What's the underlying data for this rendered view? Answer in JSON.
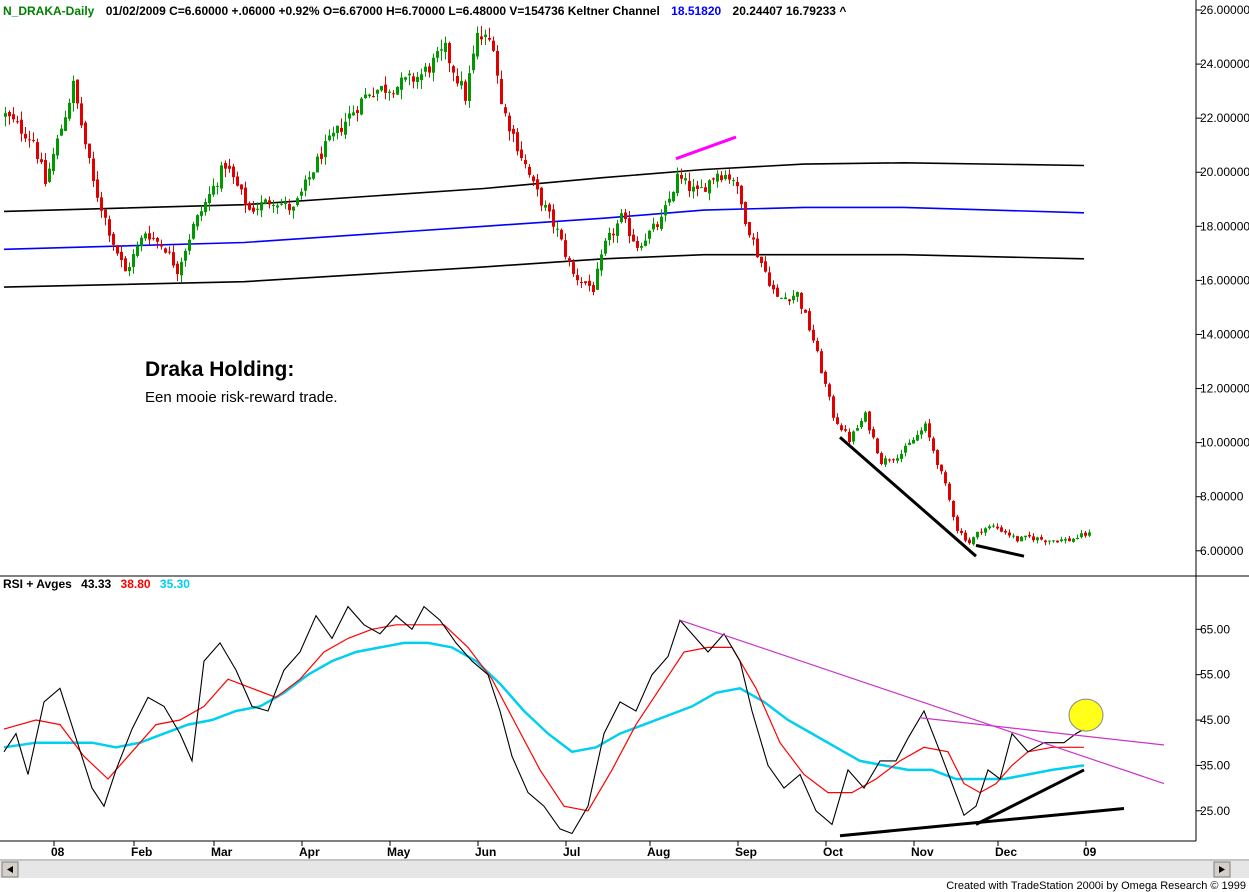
{
  "header": {
    "symbol": "N_DRAKA-Daily",
    "rest": "01/02/2009  C=6.60000  +.06000  +0.92%  O=6.67000  H=6.70000  L=6.48000  V=154736  Keltner Channel",
    "kc_mid": "18.51820",
    "kc_rest": "20.24407  16.79233  ^",
    "symbol_color": "#008000",
    "kc_mid_color": "#0000ff"
  },
  "rsi_header": {
    "label": "RSI + Avges",
    "v1": "43.33",
    "v2": "38.80",
    "v3": "35.30",
    "v2_color": "#ff0000",
    "v3_color": "#00cfef"
  },
  "annotation": {
    "title": "Draka Holding:",
    "subtitle": "Een mooie risk-reward trade."
  },
  "footer": {
    "credit": "Created with TradeStation 2000i by Omega Research © 1999"
  },
  "chart_data": [
    {
      "type": "candlestick",
      "title": "N_DRAKA-Daily",
      "y_ticks": [
        "26.00000",
        "24.00000",
        "22.00000",
        "20.00000",
        "18.00000",
        "16.00000",
        "14.00000",
        "12.00000",
        "10.00000",
        "8.00000",
        "6.00000"
      ],
      "ylim": [
        5.4,
        26.0
      ],
      "x_ticks": [
        "08",
        "Feb",
        "Mar",
        "Apr",
        "May",
        "Jun",
        "Jul",
        "Aug",
        "Sep",
        "Oct",
        "Nov",
        "Dec",
        "09"
      ],
      "x_tick_index": [
        12,
        32,
        52,
        74,
        96,
        118,
        140,
        161,
        183,
        205,
        227,
        248,
        270
      ],
      "n_bars": 272,
      "price_path": [
        [
          0,
          22.1
        ],
        [
          7,
          21.2
        ],
        [
          10,
          19.6
        ],
        [
          17,
          23.2
        ],
        [
          22,
          19.6
        ],
        [
          27,
          17.4
        ],
        [
          30,
          16.3
        ],
        [
          35,
          17.8
        ],
        [
          40,
          17.2
        ],
        [
          43,
          16.4
        ],
        [
          47,
          18.0
        ],
        [
          55,
          20.3
        ],
        [
          61,
          18.6
        ],
        [
          67,
          19.0
        ],
        [
          72,
          18.6
        ],
        [
          79,
          20.7
        ],
        [
          86,
          22.1
        ],
        [
          91,
          23.0
        ],
        [
          98,
          23.2
        ],
        [
          104,
          23.6
        ],
        [
          110,
          24.5
        ],
        [
          115,
          22.8
        ],
        [
          118,
          25.0
        ],
        [
          122,
          24.8
        ],
        [
          124,
          22.5
        ],
        [
          128,
          21.0
        ],
        [
          132,
          19.5
        ],
        [
          138,
          17.8
        ],
        [
          142,
          16.2
        ],
        [
          147,
          15.7
        ],
        [
          150,
          17.3
        ],
        [
          154,
          18.3
        ],
        [
          158,
          17.3
        ],
        [
          164,
          18.2
        ],
        [
          168,
          19.8
        ],
        [
          173,
          19.2
        ],
        [
          178,
          20.0
        ],
        [
          182,
          19.8
        ],
        [
          185,
          18.3
        ],
        [
          188,
          17.0
        ],
        [
          193,
          15.3
        ],
        [
          198,
          15.5
        ],
        [
          202,
          13.8
        ],
        [
          207,
          11.0
        ],
        [
          211,
          10.1
        ],
        [
          215,
          11.0
        ],
        [
          219,
          9.3
        ],
        [
          224,
          9.6
        ],
        [
          230,
          10.6
        ],
        [
          235,
          8.4
        ],
        [
          238,
          6.8
        ],
        [
          241,
          6.3
        ],
        [
          244,
          6.8
        ],
        [
          247,
          6.9
        ],
        [
          250,
          6.7
        ],
        [
          253,
          6.4
        ],
        [
          256,
          6.5
        ],
        [
          260,
          6.4
        ],
        [
          266,
          6.4
        ],
        [
          270,
          6.6
        ]
      ],
      "keltner_mid": [
        [
          0,
          17.15
        ],
        [
          60,
          17.4
        ],
        [
          120,
          18.0
        ],
        [
          150,
          18.3
        ],
        [
          175,
          18.6
        ],
        [
          200,
          18.7
        ],
        [
          225,
          18.7
        ],
        [
          270,
          18.5
        ]
      ],
      "keltner_upper": [
        [
          0,
          18.55
        ],
        [
          60,
          18.8
        ],
        [
          120,
          19.4
        ],
        [
          150,
          19.8
        ],
        [
          175,
          20.1
        ],
        [
          200,
          20.3
        ],
        [
          225,
          20.35
        ],
        [
          270,
          20.25
        ]
      ],
      "keltner_lower": [
        [
          0,
          15.75
        ],
        [
          60,
          15.95
        ],
        [
          120,
          16.5
        ],
        [
          150,
          16.8
        ],
        [
          175,
          16.95
        ],
        [
          200,
          16.95
        ],
        [
          225,
          16.95
        ],
        [
          270,
          16.8
        ]
      ],
      "trendlines": [
        {
          "points": [
            [
              209,
              10.2
            ],
            [
              243,
              5.8
            ]
          ],
          "color": "#000000"
        },
        {
          "points": [
            [
              243,
              6.2
            ],
            [
              255,
              5.8
            ]
          ],
          "color": "#000000"
        },
        {
          "points": [
            [
              168,
              20.5
            ],
            [
              183,
              21.3
            ]
          ],
          "color": "#ff00ff"
        }
      ],
      "series": [
        {
          "name": "Keltner Channel",
          "color": "#000000"
        },
        {
          "name": "18.51820",
          "color": "#0000ff"
        }
      ]
    },
    {
      "type": "line",
      "title": "RSI + Avges",
      "y_ticks": [
        "65.00",
        "55.00",
        "45.00",
        "35.00",
        "25.00"
      ],
      "ylim": [
        19.0,
        73.0
      ],
      "rsi_path": [
        [
          0,
          38
        ],
        [
          3,
          42
        ],
        [
          6,
          33
        ],
        [
          10,
          49
        ],
        [
          14,
          52
        ],
        [
          18,
          41
        ],
        [
          22,
          30
        ],
        [
          25,
          26
        ],
        [
          28,
          34
        ],
        [
          32,
          43
        ],
        [
          36,
          50
        ],
        [
          40,
          48
        ],
        [
          44,
          42
        ],
        [
          47,
          36
        ],
        [
          50,
          58
        ],
        [
          54,
          62
        ],
        [
          58,
          56
        ],
        [
          62,
          48
        ],
        [
          66,
          47
        ],
        [
          70,
          56
        ],
        [
          74,
          60
        ],
        [
          78,
          68
        ],
        [
          82,
          63
        ],
        [
          86,
          70
        ],
        [
          90,
          66
        ],
        [
          94,
          64
        ],
        [
          98,
          68
        ],
        [
          102,
          65
        ],
        [
          105,
          70
        ],
        [
          109,
          67
        ],
        [
          113,
          62
        ],
        [
          117,
          58
        ],
        [
          121,
          55
        ],
        [
          124,
          47
        ],
        [
          127,
          37
        ],
        [
          131,
          29
        ],
        [
          135,
          26
        ],
        [
          139,
          21
        ],
        [
          142,
          20
        ],
        [
          146,
          26
        ],
        [
          150,
          42
        ],
        [
          154,
          49
        ],
        [
          158,
          47
        ],
        [
          162,
          55
        ],
        [
          166,
          59
        ],
        [
          169,
          67
        ],
        [
          173,
          63
        ],
        [
          176,
          60
        ],
        [
          180,
          64
        ],
        [
          184,
          58
        ],
        [
          187,
          47
        ],
        [
          191,
          35
        ],
        [
          195,
          30
        ],
        [
          199,
          33
        ],
        [
          203,
          25
        ],
        [
          207,
          22
        ],
        [
          211,
          34
        ],
        [
          215,
          30
        ],
        [
          219,
          36
        ],
        [
          223,
          36
        ],
        [
          226,
          41
        ],
        [
          230,
          47
        ],
        [
          234,
          38
        ],
        [
          237,
          31
        ],
        [
          240,
          24
        ],
        [
          243,
          26
        ],
        [
          246,
          34
        ],
        [
          249,
          32
        ],
        [
          252,
          42
        ],
        [
          256,
          38
        ],
        [
          260,
          40
        ],
        [
          265,
          40
        ],
        [
          268,
          42
        ],
        [
          270,
          43
        ]
      ],
      "avg1_path": [
        [
          0,
          43
        ],
        [
          8,
          45
        ],
        [
          14,
          44
        ],
        [
          20,
          37
        ],
        [
          26,
          32
        ],
        [
          32,
          38
        ],
        [
          38,
          44
        ],
        [
          44,
          45
        ],
        [
          50,
          48
        ],
        [
          56,
          54
        ],
        [
          62,
          52
        ],
        [
          68,
          50
        ],
        [
          74,
          54
        ],
        [
          80,
          60
        ],
        [
          86,
          63
        ],
        [
          92,
          65
        ],
        [
          98,
          66
        ],
        [
          104,
          66
        ],
        [
          110,
          66
        ],
        [
          116,
          61
        ],
        [
          122,
          54
        ],
        [
          128,
          44
        ],
        [
          134,
          34
        ],
        [
          140,
          26
        ],
        [
          146,
          25
        ],
        [
          152,
          34
        ],
        [
          158,
          44
        ],
        [
          164,
          52
        ],
        [
          170,
          60
        ],
        [
          176,
          61
        ],
        [
          182,
          61
        ],
        [
          188,
          52
        ],
        [
          194,
          40
        ],
        [
          200,
          33
        ],
        [
          206,
          29
        ],
        [
          212,
          29
        ],
        [
          218,
          32
        ],
        [
          224,
          36
        ],
        [
          230,
          39
        ],
        [
          236,
          38
        ],
        [
          240,
          31
        ],
        [
          244,
          29
        ],
        [
          248,
          31
        ],
        [
          252,
          35
        ],
        [
          256,
          38
        ],
        [
          262,
          39
        ],
        [
          270,
          39
        ]
      ],
      "avg2_path": [
        [
          0,
          39
        ],
        [
          8,
          40
        ],
        [
          16,
          40
        ],
        [
          22,
          40
        ],
        [
          28,
          39
        ],
        [
          34,
          40
        ],
        [
          40,
          42
        ],
        [
          46,
          44
        ],
        [
          52,
          45
        ],
        [
          58,
          47
        ],
        [
          64,
          48
        ],
        [
          70,
          51
        ],
        [
          76,
          55
        ],
        [
          82,
          58
        ],
        [
          88,
          60
        ],
        [
          94,
          61
        ],
        [
          100,
          62
        ],
        [
          106,
          62
        ],
        [
          112,
          61
        ],
        [
          118,
          58
        ],
        [
          124,
          53
        ],
        [
          130,
          47
        ],
        [
          136,
          42
        ],
        [
          142,
          38
        ],
        [
          148,
          39
        ],
        [
          154,
          42
        ],
        [
          160,
          44
        ],
        [
          166,
          46
        ],
        [
          172,
          48
        ],
        [
          178,
          51
        ],
        [
          184,
          52
        ],
        [
          190,
          49
        ],
        [
          196,
          45
        ],
        [
          202,
          42
        ],
        [
          208,
          39
        ],
        [
          214,
          36
        ],
        [
          220,
          35
        ],
        [
          226,
          34
        ],
        [
          232,
          34
        ],
        [
          238,
          32
        ],
        [
          244,
          32
        ],
        [
          250,
          32
        ],
        [
          256,
          33
        ],
        [
          262,
          34
        ],
        [
          270,
          35
        ]
      ],
      "trendlines": [
        {
          "points": [
            [
              169,
              67
            ],
            [
              290,
              31
            ]
          ],
          "color": "#cc33cc"
        },
        {
          "points": [
            [
              229,
              45.5
            ],
            [
              290,
              39.5
            ]
          ],
          "color": "#cc33cc"
        },
        {
          "points": [
            [
              243,
              22
            ],
            [
              270,
              34
            ]
          ],
          "color": "#000000"
        },
        {
          "points": [
            [
              209,
              19.5
            ],
            [
              280,
              25.5
            ]
          ],
          "color": "#000000"
        }
      ],
      "highlight_circle": {
        "x": 268,
        "y": 43,
        "color": "#ffff00"
      },
      "series": [
        {
          "name": "43.33",
          "color": "#000000"
        },
        {
          "name": "38.80",
          "color": "#ff0000"
        },
        {
          "name": "35.30",
          "color": "#00cfef"
        }
      ]
    }
  ]
}
